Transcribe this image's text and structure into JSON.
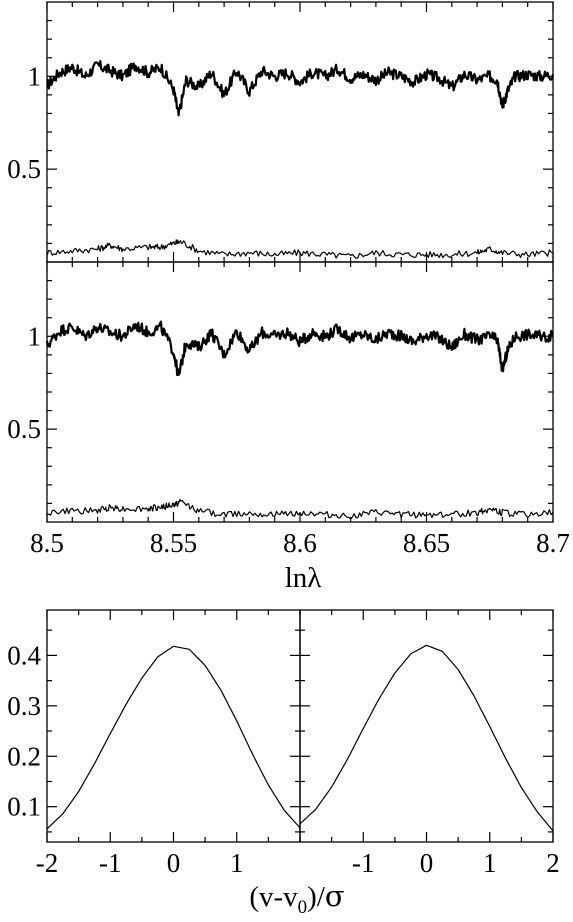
{
  "chart_data": [
    {
      "type": "line",
      "panel": "top-spectrum",
      "xlim": [
        8.5,
        8.7
      ],
      "ylim": [
        0.0,
        1.4
      ],
      "y_ticks": [
        0.5,
        1
      ],
      "y_tick_labels": [
        "0.5",
        "1"
      ],
      "x_ticks": [
        8.5,
        8.55,
        8.6,
        8.65,
        8.7
      ],
      "grid": false,
      "series": [
        {
          "role": "spectrum",
          "x": [
            8.5,
            8.505,
            8.51,
            8.515,
            8.52,
            8.525,
            8.53,
            8.535,
            8.54,
            8.545,
            8.55,
            8.552,
            8.555,
            8.56,
            8.565,
            8.57,
            8.575,
            8.58,
            8.585,
            8.59,
            8.595,
            8.6,
            8.605,
            8.61,
            8.615,
            8.62,
            8.625,
            8.63,
            8.635,
            8.64,
            8.645,
            8.65,
            8.655,
            8.66,
            8.665,
            8.67,
            8.675,
            8.678,
            8.68,
            8.682,
            8.685,
            8.69,
            8.695,
            8.7
          ],
          "y": [
            0.95,
            1.02,
            1.05,
            1.0,
            1.06,
            1.03,
            1.0,
            1.06,
            1.02,
            1.05,
            0.93,
            0.79,
            0.98,
            0.94,
            1.02,
            0.9,
            1.03,
            0.92,
            1.03,
            1.0,
            1.02,
            0.97,
            1.02,
            1.0,
            1.04,
            0.99,
            1.01,
            0.98,
            1.02,
            1.0,
            0.97,
            1.01,
            0.99,
            0.94,
            1.01,
            0.98,
            1.0,
            0.98,
            0.84,
            0.92,
            1.0,
            1.01,
            1.0,
            1.01
          ]
        },
        {
          "role": "residual",
          "x": [
            8.5,
            8.51,
            8.52,
            8.525,
            8.53,
            8.54,
            8.545,
            8.55,
            8.553,
            8.56,
            8.57,
            8.58,
            8.59,
            8.6,
            8.61,
            8.62,
            8.63,
            8.64,
            8.65,
            8.66,
            8.67,
            8.675,
            8.68,
            8.69,
            8.7
          ],
          "y": [
            0.05,
            0.06,
            0.07,
            0.09,
            0.07,
            0.08,
            0.08,
            0.1,
            0.11,
            0.06,
            0.04,
            0.05,
            0.04,
            0.05,
            0.04,
            0.03,
            0.05,
            0.04,
            0.04,
            0.04,
            0.05,
            0.07,
            0.05,
            0.04,
            0.05
          ]
        }
      ]
    },
    {
      "type": "line",
      "panel": "middle-spectrum",
      "xlim": [
        8.5,
        8.7
      ],
      "ylim": [
        0.0,
        1.4
      ],
      "y_ticks": [
        0.5,
        1
      ],
      "y_tick_labels": [
        "0.5",
        "1"
      ],
      "x_ticks": [
        8.5,
        8.55,
        8.6,
        8.65,
        8.7
      ],
      "x_tick_labels": [
        "8.5",
        "8.55",
        "8.6",
        "8.65",
        "8.7"
      ],
      "xlabel": "lnλ",
      "grid": false,
      "series": [
        {
          "role": "spectrum",
          "x": [
            8.5,
            8.505,
            8.51,
            8.515,
            8.52,
            8.525,
            8.53,
            8.535,
            8.54,
            8.545,
            8.55,
            8.552,
            8.555,
            8.56,
            8.565,
            8.57,
            8.575,
            8.58,
            8.585,
            8.59,
            8.595,
            8.6,
            8.605,
            8.61,
            8.615,
            8.62,
            8.625,
            8.63,
            8.635,
            8.64,
            8.645,
            8.65,
            8.655,
            8.66,
            8.665,
            8.67,
            8.675,
            8.678,
            8.68,
            8.682,
            8.685,
            8.69,
            8.695,
            8.7
          ],
          "y": [
            0.95,
            1.03,
            1.05,
            1.0,
            1.05,
            1.02,
            1.0,
            1.06,
            1.02,
            1.05,
            0.92,
            0.78,
            0.97,
            0.94,
            1.02,
            0.9,
            1.03,
            0.92,
            1.02,
            1.0,
            1.02,
            0.97,
            1.02,
            1.0,
            1.04,
            0.99,
            1.01,
            0.98,
            1.02,
            1.0,
            0.97,
            1.01,
            0.99,
            0.94,
            1.01,
            0.98,
            1.0,
            0.98,
            0.82,
            0.92,
            1.0,
            1.01,
            1.0,
            1.0
          ]
        },
        {
          "role": "residual",
          "x": [
            8.5,
            8.51,
            8.52,
            8.525,
            8.53,
            8.54,
            8.545,
            8.55,
            8.553,
            8.56,
            8.57,
            8.58,
            8.59,
            8.6,
            8.61,
            8.62,
            8.63,
            8.64,
            8.65,
            8.66,
            8.67,
            8.675,
            8.68,
            8.69,
            8.7
          ],
          "y": [
            0.05,
            0.06,
            0.06,
            0.08,
            0.07,
            0.07,
            0.08,
            0.09,
            0.11,
            0.06,
            0.04,
            0.05,
            0.04,
            0.05,
            0.04,
            0.03,
            0.05,
            0.04,
            0.04,
            0.04,
            0.05,
            0.07,
            0.05,
            0.04,
            0.05
          ]
        }
      ]
    },
    {
      "type": "line",
      "panel": "bottom-left-broadening",
      "xlim": [
        -2,
        2
      ],
      "ylim": [
        0.03,
        0.49
      ],
      "y_ticks": [
        0.1,
        0.2,
        0.3,
        0.4
      ],
      "y_tick_labels": [
        "0.1",
        "0.2",
        "0.3",
        "0.4"
      ],
      "x_ticks": [
        -2,
        -1,
        0,
        1
      ],
      "x_tick_labels": [
        "-2",
        "-1",
        "0",
        "1"
      ],
      "grid": false,
      "series": [
        {
          "x": [
            -2.0,
            -1.75,
            -1.5,
            -1.25,
            -1.0,
            -0.75,
            -0.5,
            -0.25,
            0.0,
            0.25,
            0.5,
            0.75,
            1.0,
            1.25,
            1.5,
            1.75,
            2.0
          ],
          "y": [
            0.056,
            0.086,
            0.13,
            0.185,
            0.245,
            0.303,
            0.355,
            0.397,
            0.418,
            0.412,
            0.38,
            0.331,
            0.27,
            0.204,
            0.143,
            0.093,
            0.058
          ]
        }
      ]
    },
    {
      "type": "line",
      "panel": "bottom-right-broadening",
      "xlim": [
        -2,
        2
      ],
      "ylim": [
        0.03,
        0.49
      ],
      "x_ticks": [
        -1,
        0,
        1,
        2
      ],
      "x_tick_labels": [
        "-1",
        "0",
        "1",
        "2"
      ],
      "xlabel": "(v-v0)/σ",
      "grid": false,
      "series": [
        {
          "x": [
            -2.0,
            -1.75,
            -1.5,
            -1.25,
            -1.0,
            -0.75,
            -0.5,
            -0.25,
            0.0,
            0.25,
            0.5,
            0.75,
            1.0,
            1.25,
            1.5,
            1.75,
            2.0
          ],
          "y": [
            0.066,
            0.095,
            0.139,
            0.194,
            0.255,
            0.314,
            0.365,
            0.403,
            0.42,
            0.408,
            0.372,
            0.32,
            0.259,
            0.196,
            0.138,
            0.09,
            0.052
          ]
        }
      ]
    }
  ]
}
